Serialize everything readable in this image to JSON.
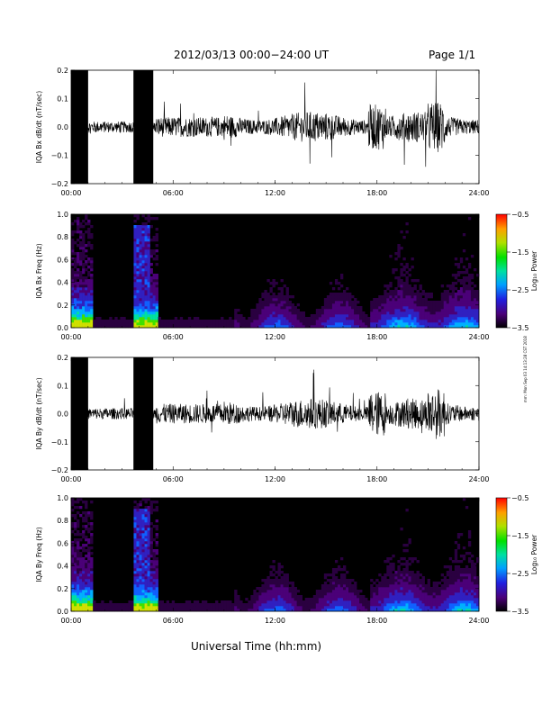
{
  "header": {
    "title": "2012/03/13  00:00−24:00 UT",
    "page": "Page 1/1"
  },
  "footer": {
    "xlabel": "Universal Time (hh:mm)"
  },
  "stamp": "mm: Mon Sep 03 14:13:28 CST 2018",
  "colorbar": {
    "label": "Log₁₀ Power",
    "ticks": [
      "−0.5",
      "−1.5",
      "−2.5",
      "−3.5"
    ]
  },
  "chart_data": [
    {
      "type": "line",
      "panel": "Bx",
      "ylabel": "IQA Bx dB/dt (nT/sec)",
      "xlim": [
        "00:00",
        "24:00"
      ],
      "ylim": [
        -0.2,
        0.2
      ],
      "yticks": [
        "0.2",
        "0.1",
        "0.0",
        "−0.1",
        "−0.2"
      ],
      "xticks": [
        "00:00",
        "06:00",
        "12:00",
        "18:00",
        "24:00"
      ],
      "saturated_intervals": [
        [
          "00:00",
          "01:00"
        ],
        [
          "03:40",
          "04:50"
        ]
      ]
    },
    {
      "type": "heatmap",
      "panel": "Bx",
      "ylabel": "IQA Bx Freq (Hz)",
      "xlim": [
        "00:00",
        "24:00"
      ],
      "ylim": [
        0.0,
        1.0
      ],
      "yticks": [
        "1.0",
        "0.8",
        "0.6",
        "0.4",
        "0.2",
        "0.0"
      ],
      "xticks": [
        "00:00",
        "06:00",
        "12:00",
        "18:00",
        "24:00"
      ],
      "colorbar": {
        "label": "Log₁₀ Power",
        "range": [
          -3.5,
          -0.5
        ]
      }
    },
    {
      "type": "line",
      "panel": "By",
      "ylabel": "IQA By dB/dt (nT/sec)",
      "xlim": [
        "00:00",
        "24:00"
      ],
      "ylim": [
        -0.2,
        0.2
      ],
      "yticks": [
        "0.2",
        "0.1",
        "0.0",
        "−0.1",
        "−0.2"
      ],
      "xticks": [
        "00:00",
        "06:00",
        "12:00",
        "18:00",
        "24:00"
      ],
      "saturated_intervals": [
        [
          "00:00",
          "01:00"
        ],
        [
          "03:40",
          "04:50"
        ]
      ]
    },
    {
      "type": "heatmap",
      "panel": "By",
      "ylabel": "IQA By Freq (Hz)",
      "xlim": [
        "00:00",
        "24:00"
      ],
      "ylim": [
        0.0,
        1.0
      ],
      "yticks": [
        "1.0",
        "0.8",
        "0.6",
        "0.4",
        "0.2",
        "0.0"
      ],
      "xticks": [
        "00:00",
        "06:00",
        "12:00",
        "18:00",
        "24:00"
      ],
      "colorbar": {
        "label": "Log₁₀ Power",
        "range": [
          -3.5,
          -0.5
        ]
      }
    }
  ]
}
